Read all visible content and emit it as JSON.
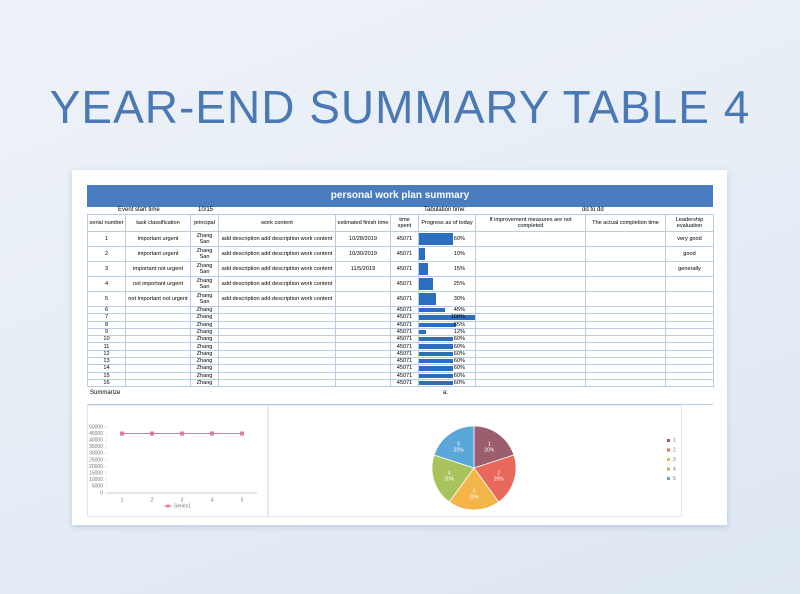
{
  "title": "YEAR-END SUMMARY TABLE 4",
  "sheet": {
    "title": "personal work plan summary",
    "meta": {
      "event_label": "Event start time",
      "event_value": "10/15",
      "tabulation_label": "Tabulation time:",
      "tabulation_value": "dd to dd"
    },
    "columns": [
      "serial number",
      "task classification",
      "principal",
      "work content",
      "estimated finish time",
      "time spent",
      "Progress as of today",
      "If improvement measures are not completed",
      "The actual completion time",
      "Leadership evaluation"
    ],
    "rows": [
      {
        "serial": 1,
        "task": "important urgent",
        "principal": "Zhang San",
        "content": "add description add description work content",
        "finish": "10/28/2019",
        "spent": 45071,
        "progress": 60,
        "progress_label": "60%",
        "evaluation": "very good"
      },
      {
        "serial": 2,
        "task": "important urgent",
        "principal": "Zhang San",
        "content": "add description add description work content",
        "finish": "10/30/2019",
        "spent": 45071,
        "progress": 10,
        "progress_label": "10%",
        "evaluation": "good"
      },
      {
        "serial": 3,
        "task": "important not urgent",
        "principal": "Zhang San",
        "content": "add description add description work content",
        "finish": "11/5/2019",
        "spent": 45071,
        "progress": 15,
        "progress_label": "15%",
        "evaluation": "generally"
      },
      {
        "serial": 4,
        "task": "not important urgent",
        "principal": "Zhang San",
        "content": "add description add description work content",
        "spent": 45071,
        "progress": 25,
        "progress_label": "25%"
      },
      {
        "serial": 5,
        "task": "not important not urgent",
        "principal": "Zhang San",
        "content": "add description add description work content",
        "spent": 45071,
        "progress": 30,
        "progress_label": "30%"
      },
      {
        "serial": 6,
        "principal": "Zhang",
        "spent": 45071,
        "progress": 45,
        "progress_label": "45%"
      },
      {
        "serial": 7,
        "principal": "Zhang",
        "spent": 45071,
        "progress": 100,
        "progress_label": "100%"
      },
      {
        "serial": 8,
        "principal": "Zhang",
        "spent": 45071,
        "progress": 65,
        "progress_label": "65%"
      },
      {
        "serial": 9,
        "principal": "Zhang",
        "spent": 45071,
        "progress": 12,
        "progress_label": "12%"
      },
      {
        "serial": 10,
        "principal": "Zhang",
        "spent": 45071,
        "progress": 60,
        "progress_label": "60%"
      },
      {
        "serial": 11,
        "principal": "Zhang",
        "spent": 45071,
        "progress": 60,
        "progress_label": "60%"
      },
      {
        "serial": 12,
        "principal": "Zhang",
        "spent": 45071,
        "progress": 60,
        "progress_label": "60%"
      },
      {
        "serial": 13,
        "principal": "Zhang",
        "spent": 45071,
        "progress": 60,
        "progress_label": "60%"
      },
      {
        "serial": 14,
        "principal": "Zhang",
        "spent": 45071,
        "progress": 60,
        "progress_label": "60%"
      },
      {
        "serial": 15,
        "principal": "Zhang",
        "spent": 45071,
        "progress": 60,
        "progress_label": "60%"
      },
      {
        "serial": 16,
        "principal": "Zhang",
        "spent": 45071,
        "progress": 60,
        "progress_label": "60%"
      }
    ],
    "summary_label": "Summarize",
    "summary_value": "a:"
  },
  "chart_data": [
    {
      "type": "line",
      "categories": [
        "1",
        "2",
        "3",
        "4",
        "5"
      ],
      "series": [
        {
          "name": "Series1",
          "color": "#e07a9a",
          "values": [
            45071,
            45071,
            45071,
            45071,
            45071
          ]
        }
      ],
      "ylim": [
        0,
        50000
      ],
      "yticks": [
        0,
        5000,
        10000,
        15000,
        20000,
        25000,
        30000,
        35000,
        40000,
        45000,
        50000
      ]
    },
    {
      "type": "pie",
      "categories": [
        "1",
        "2",
        "3",
        "4",
        "5"
      ],
      "values": [
        20,
        20,
        20,
        20,
        20
      ],
      "value_labels": [
        "20%",
        "20%",
        "20%",
        "20%",
        "20%"
      ],
      "colors": [
        "#9c5d6e",
        "#e8695c",
        "#f3b548",
        "#a9c35c",
        "#5ba7d9"
      ]
    }
  ]
}
